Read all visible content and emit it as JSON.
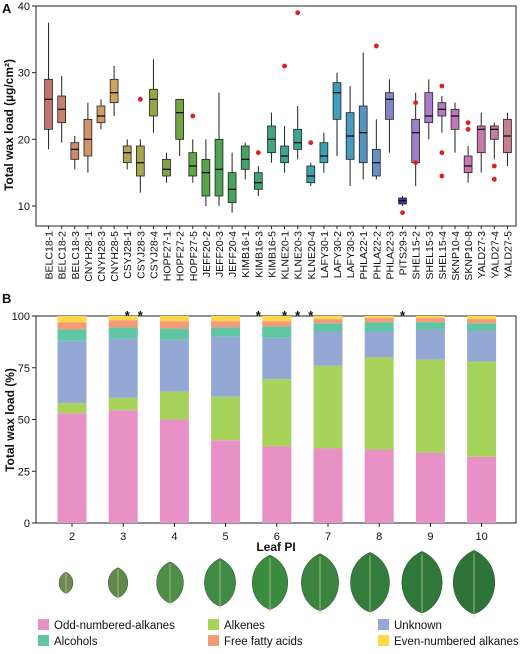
{
  "chart_data": [
    {
      "panel_label": "A",
      "type": "boxplot",
      "ylabel": "Total wax load (µg/cm²)",
      "ylim": [
        7,
        40
      ],
      "yticks": [
        10,
        20,
        30,
        40
      ],
      "grid": false,
      "significance_marker": "*",
      "categories": [
        "BELC18-1",
        "BELC18-2",
        "BELC18-3",
        "CNYH28-1",
        "CNYH28-3",
        "CNYH28-5",
        "CSYJ28-1",
        "CSYJ28-3",
        "CSYJ28-4",
        "HOPF27-1",
        "HOPF27-2",
        "HOPF27-5",
        "JEFF20-2",
        "JEFF20-3",
        "JEFF20-4",
        "KIMB16-1",
        "KIMB16-3",
        "KIMB16-5",
        "KLNE20-1",
        "KLNE20-3",
        "KLNE20-4",
        "LAFY30-1",
        "LAFY30-2",
        "LAFY30-3",
        "PHLA22-1",
        "PHLA22-2",
        "PHLA22-3",
        "PITS29-3",
        "SHEL15-2",
        "SHEL15-3",
        "SHEL15-4",
        "SKNP10-4",
        "SKNP10-8",
        "YALD27-3",
        "YALD27-4",
        "YALD27-5"
      ],
      "boxes": [
        {
          "min": 18.5,
          "q1": 21.5,
          "median": 26,
          "q3": 29,
          "max": 37.5,
          "outliers": [],
          "color": "#c0766e",
          "significant": false
        },
        {
          "min": 19.5,
          "q1": 22.5,
          "median": 24.5,
          "q3": 26.5,
          "max": 29.5,
          "outliers": [],
          "color": "#c8806e",
          "significant": false
        },
        {
          "min": 15.5,
          "q1": 17,
          "median": 18.5,
          "q3": 19.5,
          "max": 20.5,
          "outliers": [],
          "color": "#cc8a6a",
          "significant": false
        },
        {
          "min": 15,
          "q1": 17.5,
          "median": 20,
          "q3": 23,
          "max": 25.5,
          "outliers": [],
          "color": "#cf9468",
          "significant": false
        },
        {
          "min": 21.5,
          "q1": 22.5,
          "median": 23.5,
          "q3": 25,
          "max": 26,
          "outliers": [],
          "color": "#d09c64",
          "significant": false
        },
        {
          "min": 23.5,
          "q1": 25.5,
          "median": 27,
          "q3": 29,
          "max": 31,
          "outliers": [],
          "color": "#cfa45e",
          "significant": false
        },
        {
          "min": 15.5,
          "q1": 16.5,
          "median": 18,
          "q3": 19,
          "max": 20,
          "outliers": [],
          "color": "#b6a454",
          "significant": true
        },
        {
          "min": 12,
          "q1": 14.5,
          "median": 16.5,
          "q3": 19,
          "max": 20,
          "outliers": [
            26
          ],
          "color": "#a7a64c",
          "significant": true
        },
        {
          "min": 21,
          "q1": 23.5,
          "median": 26,
          "q3": 27.5,
          "max": 32,
          "outliers": [],
          "color": "#93a644",
          "significant": false
        },
        {
          "min": 13.5,
          "q1": 14.5,
          "median": 15.5,
          "q3": 17,
          "max": 18,
          "outliers": [],
          "color": "#7ea444",
          "significant": false
        },
        {
          "min": 17.5,
          "q1": 20,
          "median": 24,
          "q3": 26,
          "max": 26,
          "outliers": [],
          "color": "#70a444",
          "significant": false
        },
        {
          "min": 13.5,
          "q1": 14.5,
          "median": 16,
          "q3": 18,
          "max": 20,
          "outliers": [
            23.5
          ],
          "color": "#62a446",
          "significant": false
        },
        {
          "min": 10,
          "q1": 11.5,
          "median": 15,
          "q3": 17,
          "max": 20,
          "outliers": [],
          "color": "#56a44c",
          "significant": false
        },
        {
          "min": 10,
          "q1": 11.5,
          "median": 15.5,
          "q3": 20,
          "max": 27,
          "outliers": [],
          "color": "#4ea454",
          "significant": false
        },
        {
          "min": 9,
          "q1": 10.5,
          "median": 12.5,
          "q3": 15,
          "max": 18,
          "outliers": [],
          "color": "#48a45c",
          "significant": false
        },
        {
          "min": 14,
          "q1": 15.5,
          "median": 17,
          "q3": 19,
          "max": 19.5,
          "outliers": [],
          "color": "#44a466",
          "significant": false
        },
        {
          "min": 11.5,
          "q1": 12.5,
          "median": 13.5,
          "q3": 15,
          "max": 16,
          "outliers": [
            18
          ],
          "color": "#40a470",
          "significant": true
        },
        {
          "min": 16.5,
          "q1": 18,
          "median": 20,
          "q3": 22,
          "max": 24,
          "outliers": [],
          "color": "#40a67e",
          "significant": false
        },
        {
          "min": 15,
          "q1": 16.5,
          "median": 17.5,
          "q3": 19,
          "max": 22,
          "outliers": [
            31
          ],
          "color": "#40a48a",
          "significant": true
        },
        {
          "min": 17,
          "q1": 18.5,
          "median": 19.5,
          "q3": 21.5,
          "max": 25,
          "outliers": [
            39
          ],
          "color": "#3ea496",
          "significant": true
        },
        {
          "min": 13,
          "q1": 13.5,
          "median": 14.5,
          "q3": 16,
          "max": 16.5,
          "outliers": [
            19.5
          ],
          "color": "#3ea2a4",
          "significant": true
        },
        {
          "min": 15,
          "q1": 16.5,
          "median": 17.5,
          "q3": 19.5,
          "max": 21,
          "outliers": [],
          "color": "#3ea0ae",
          "significant": false
        },
        {
          "min": 17.5,
          "q1": 23,
          "median": 27,
          "q3": 28.5,
          "max": 30,
          "outliers": [],
          "color": "#3e9eba",
          "significant": false
        },
        {
          "min": 13,
          "q1": 17,
          "median": 20.5,
          "q3": 24,
          "max": 28,
          "outliers": [],
          "color": "#4a9ac0",
          "significant": false
        },
        {
          "min": 14,
          "q1": 16.5,
          "median": 21,
          "q3": 25,
          "max": 33,
          "outliers": [],
          "color": "#5894c2",
          "significant": false
        },
        {
          "min": 14,
          "q1": 14.5,
          "median": 16.5,
          "q3": 18.5,
          "max": 23,
          "outliers": [
            34
          ],
          "color": "#6a8ec6",
          "significant": false
        },
        {
          "min": 18,
          "q1": 23,
          "median": 26,
          "q3": 27,
          "max": 29,
          "outliers": [],
          "color": "#8286c6",
          "significant": false
        },
        {
          "min": 10,
          "q1": 10.3,
          "median": 10.8,
          "q3": 11.2,
          "max": 11.5,
          "outliers": [
            9
          ],
          "color": "#3a3a9a",
          "significant": true
        },
        {
          "min": 13,
          "q1": 16.5,
          "median": 21,
          "q3": 23,
          "max": 27,
          "outliers": [
            16.5,
            25.5
          ],
          "color": "#9a82c6",
          "significant": false
        },
        {
          "min": 20,
          "q1": 22.5,
          "median": 23.5,
          "q3": 27,
          "max": 29,
          "outliers": [],
          "color": "#a87cc6",
          "significant": false
        },
        {
          "min": 21,
          "q1": 23.5,
          "median": 24.5,
          "q3": 25.5,
          "max": 26.5,
          "outliers": [
            28,
            18,
            14.5
          ],
          "color": "#b47ac2",
          "significant": false
        },
        {
          "min": 18,
          "q1": 21.5,
          "median": 23.5,
          "q3": 24.5,
          "max": 25.5,
          "outliers": [],
          "color": "#be78be",
          "significant": false
        },
        {
          "min": 13.5,
          "q1": 15,
          "median": 16,
          "q3": 17.5,
          "max": 19,
          "outliers": [
            21.5,
            22.5
          ],
          "color": "#c678b2",
          "significant": false
        },
        {
          "min": 15,
          "q1": 18,
          "median": 21.5,
          "q3": 22,
          "max": 24,
          "outliers": [],
          "color": "#c87aa6",
          "significant": false
        },
        {
          "min": 17,
          "q1": 20,
          "median": 21.5,
          "q3": 22,
          "max": 22.5,
          "outliers": [
            16,
            14
          ],
          "color": "#c77c98",
          "significant": false
        },
        {
          "min": 16,
          "q1": 18,
          "median": 20.5,
          "q3": 23,
          "max": 24,
          "outliers": [],
          "color": "#c77e8c",
          "significant": false
        }
      ]
    },
    {
      "panel_label": "B",
      "type": "stacked-bar",
      "ylabel": "Total wax load (%)",
      "xlabel": "Leaf PI",
      "ylim": [
        0,
        100
      ],
      "yticks": [
        0,
        25,
        50,
        75,
        100
      ],
      "grid": false,
      "legend_position": "bottom",
      "categories": [
        "2",
        "3",
        "4",
        "5",
        "6",
        "7",
        "8",
        "9",
        "10"
      ],
      "series": [
        {
          "name": "Odd-numbered-alkanes",
          "color": "#e891c6",
          "values": [
            53,
            54.5,
            50,
            40,
            37,
            36,
            35.5,
            34,
            32
          ]
        },
        {
          "name": "Alkenes",
          "color": "#a8d35a",
          "values": [
            5,
            6,
            13.5,
            21,
            32.5,
            40,
            44.5,
            45,
            46
          ]
        },
        {
          "name": "Unknown",
          "color": "#93a8d4",
          "values": [
            30,
            28.5,
            25,
            29,
            20,
            16.5,
            12.5,
            14.5,
            15
          ]
        },
        {
          "name": "Alcohols",
          "color": "#60c5a2",
          "values": [
            5.5,
            5.5,
            5.5,
            4.5,
            5.5,
            4,
            4.5,
            3.5,
            3.5
          ]
        },
        {
          "name": "Free fatty acids",
          "color": "#f59a77",
          "values": [
            3.5,
            3.5,
            3.5,
            3,
            2.5,
            2,
            2,
            2,
            2
          ]
        },
        {
          "name": "Even-numbered alkanes",
          "color": "#ffd84a",
          "values": [
            3,
            2,
            2.5,
            2.5,
            2.5,
            1.5,
            1,
            1,
            1.5
          ]
        }
      ]
    }
  ]
}
